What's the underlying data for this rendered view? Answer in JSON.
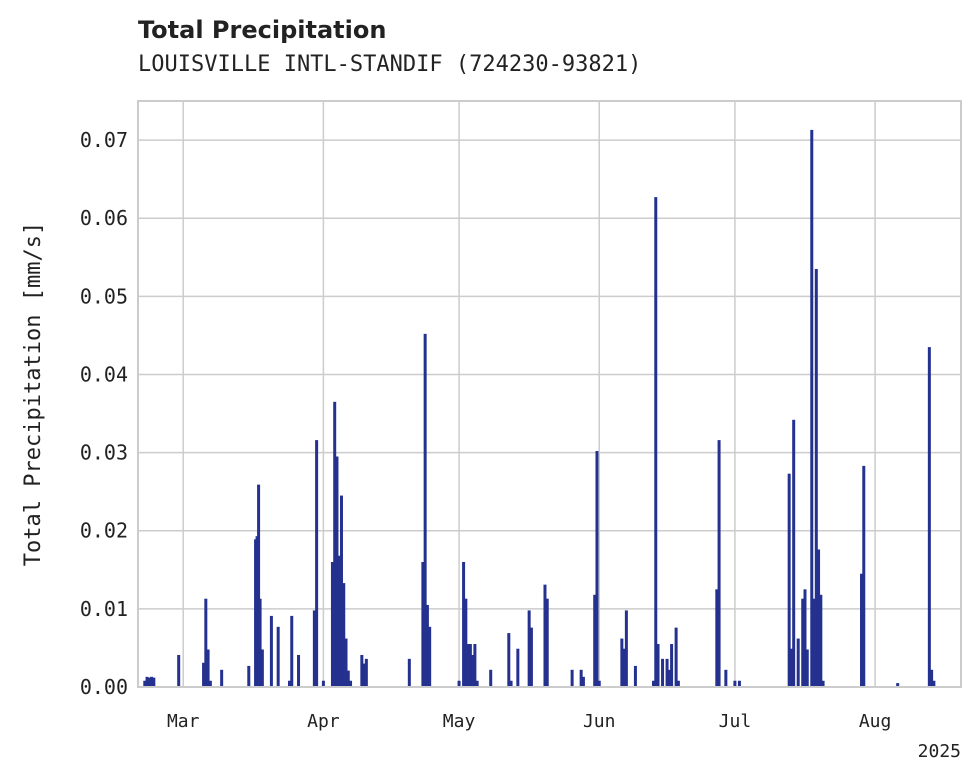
{
  "chart_data": {
    "type": "bar",
    "title": "Total Precipitation",
    "subtitle": "LOUISVILLE INTL-STANDIF (724230-93821)",
    "xlabel": "",
    "ylabel": "Total Precipitation [mm/s]",
    "ylim": [
      0,
      0.075
    ],
    "xlim": [
      "2025-02-19",
      "2025-08-20"
    ],
    "grid": true,
    "color": "#25318f",
    "y_ticks": [
      "0.00",
      "0.01",
      "0.02",
      "0.03",
      "0.04",
      "0.05",
      "0.06",
      "0.07"
    ],
    "x_ticks": [
      {
        "date": "2025-03-01",
        "label": "Mar"
      },
      {
        "date": "2025-04-01",
        "label": "Apr"
      },
      {
        "date": "2025-05-01",
        "label": "May"
      },
      {
        "date": "2025-06-01",
        "label": "Jun"
      },
      {
        "date": "2025-07-01",
        "label": "Jul"
      },
      {
        "date": "2025-08-01",
        "label": "Aug"
      }
    ],
    "year_label": "2025",
    "x": [
      "2025-02-20T12:00",
      "2025-02-21",
      "2025-02-21T12:00",
      "2025-02-22",
      "2025-02-22T12:00",
      "2025-02-28",
      "2025-03-05T12:00",
      "2025-03-06",
      "2025-03-06T12:00",
      "2025-03-07",
      "2025-03-09T12:00",
      "2025-03-15T12:00",
      "2025-03-17",
      "2025-03-17T08:00",
      "2025-03-17T16:00",
      "2025-03-18",
      "2025-03-18T12:00",
      "2025-03-20T12:00",
      "2025-03-22",
      "2025-03-24T12:00",
      "2025-03-25",
      "2025-03-26T12:00",
      "2025-03-30",
      "2025-03-30T12:00",
      "2025-04-01",
      "2025-04-03",
      "2025-04-03T12:00",
      "2025-04-04",
      "2025-04-04T12:00",
      "2025-04-05",
      "2025-04-05T12:00",
      "2025-04-06",
      "2025-04-06T12:00",
      "2025-04-07",
      "2025-04-09T12:00",
      "2025-04-10",
      "2025-04-10T12:00",
      "2025-04-20",
      "2025-04-23",
      "2025-04-23T12:00",
      "2025-04-24",
      "2025-04-24T12:00",
      "2025-05-01",
      "2025-05-02",
      "2025-05-02T12:00",
      "2025-05-03",
      "2025-05-03T12:00",
      "2025-05-04",
      "2025-05-04T12:00",
      "2025-05-05",
      "2025-05-08",
      "2025-05-12",
      "2025-05-12T12:00",
      "2025-05-14",
      "2025-05-16T12:00",
      "2025-05-17",
      "2025-05-20",
      "2025-05-20T12:00",
      "2025-05-26",
      "2025-05-28",
      "2025-05-28T12:00",
      "2025-05-31",
      "2025-05-31T12:00",
      "2025-06-01",
      "2025-06-06",
      "2025-06-06T12:00",
      "2025-06-07",
      "2025-06-09",
      "2025-06-13",
      "2025-06-13T12:00",
      "2025-06-14",
      "2025-06-15",
      "2025-06-16",
      "2025-06-16T12:00",
      "2025-06-17",
      "2025-06-18",
      "2025-06-18T12:00",
      "2025-06-27",
      "2025-06-27T12:00",
      "2025-06-29",
      "2025-07-01",
      "2025-07-02",
      "2025-07-13",
      "2025-07-13T12:00",
      "2025-07-14",
      "2025-07-15",
      "2025-07-16",
      "2025-07-16T12:00",
      "2025-07-17",
      "2025-07-18",
      "2025-07-18T12:00",
      "2025-07-19",
      "2025-07-19T12:00",
      "2025-07-20",
      "2025-07-20T12:00",
      "2025-07-29",
      "2025-07-29T12:00",
      "2025-08-06",
      "2025-08-13",
      "2025-08-13T12:00",
      "2025-08-14"
    ],
    "values": [
      0.0008,
      0.0013,
      0.0012,
      0.0013,
      0.0012,
      0.0041,
      0.0031,
      0.0113,
      0.0048,
      0.0008,
      0.0022,
      0.0027,
      0.0189,
      0.0193,
      0.0259,
      0.0113,
      0.0048,
      0.0091,
      0.0077,
      0.0008,
      0.0091,
      0.0041,
      0.0098,
      0.0316,
      0.0008,
      0.016,
      0.0365,
      0.0295,
      0.0168,
      0.0245,
      0.0133,
      0.0062,
      0.0021,
      0.0008,
      0.0041,
      0.003,
      0.0036,
      0.0036,
      0.016,
      0.0452,
      0.0105,
      0.0077,
      0.0008,
      0.016,
      0.0113,
      0.0055,
      0.0055,
      0.0041,
      0.0055,
      0.0008,
      0.0022,
      0.0069,
      0.0008,
      0.0049,
      0.0098,
      0.0076,
      0.0131,
      0.0113,
      0.0022,
      0.0022,
      0.0013,
      0.0118,
      0.0302,
      0.0008,
      0.0062,
      0.0049,
      0.0098,
      0.0027,
      0.0008,
      0.0627,
      0.0055,
      0.0036,
      0.0036,
      0.0022,
      0.0055,
      0.0076,
      0.0008,
      0.0125,
      0.0316,
      0.0022,
      0.0008,
      0.0008,
      0.0273,
      0.0049,
      0.0342,
      0.0062,
      0.0113,
      0.0125,
      0.0048,
      0.0713,
      0.0113,
      0.0535,
      0.0176,
      0.0118,
      0.0008,
      0.0145,
      0.0283,
      0.0005,
      0.0435,
      0.0022,
      0.0008
    ]
  }
}
